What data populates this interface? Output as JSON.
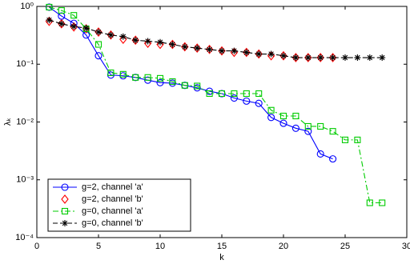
{
  "chart_data": {
    "type": "line",
    "xlabel": "k",
    "ylabel": "λₖ",
    "log_y": true,
    "xlim": [
      0,
      30
    ],
    "xticks": [
      0,
      5,
      10,
      15,
      20,
      25,
      30
    ],
    "ylim": [
      0.0001,
      1
    ],
    "yticks": [
      {
        "value": 0.0001,
        "label": "10⁻⁴"
      },
      {
        "value": 0.001,
        "label": "10⁻³"
      },
      {
        "value": 0.01,
        "label": "10⁻²"
      },
      {
        "value": 0.1,
        "label": "10⁻¹"
      },
      {
        "value": 1,
        "label": "10⁰"
      }
    ],
    "legend": "lower left",
    "series": [
      {
        "name": "g=2, channel 'a'",
        "color": "#0000ff",
        "marker": "circle",
        "linestyle": "solid",
        "x": [
          1,
          2,
          3,
          4,
          5,
          6,
          7,
          8,
          9,
          10,
          11,
          12,
          13,
          14,
          15,
          16,
          17,
          18,
          19,
          20,
          21,
          22,
          23,
          24
        ],
        "values": [
          0.97,
          0.68,
          0.51,
          0.32,
          0.14,
          0.065,
          0.063,
          0.059,
          0.053,
          0.048,
          0.047,
          0.043,
          0.039,
          0.034,
          0.031,
          0.026,
          0.023,
          0.021,
          0.012,
          0.0095,
          0.0078,
          0.0069,
          0.0028,
          0.0023
        ]
      },
      {
        "name": "g=2, channel 'b'",
        "color": "#ff0000",
        "marker": "diamond",
        "linestyle": "none",
        "x": [
          1,
          2,
          3,
          4,
          5,
          6,
          7,
          8,
          9,
          10,
          11,
          12,
          13,
          14,
          15,
          16,
          17,
          18,
          19,
          20,
          21,
          22,
          23,
          24
        ],
        "values": [
          0.55,
          0.5,
          0.44,
          0.41,
          0.36,
          0.32,
          0.27,
          0.26,
          0.23,
          0.22,
          0.22,
          0.2,
          0.19,
          0.18,
          0.17,
          0.16,
          0.16,
          0.15,
          0.14,
          0.14,
          0.13,
          0.13,
          0.13,
          0.13
        ]
      },
      {
        "name": "g=0, channel 'a'",
        "color": "#00cc00",
        "marker": "square",
        "linestyle": "dashdot",
        "x": [
          1,
          2,
          3,
          4,
          5,
          6,
          7,
          8,
          9,
          10,
          11,
          12,
          13,
          14,
          15,
          16,
          17,
          18,
          19,
          20,
          21,
          22,
          23,
          24,
          25,
          26,
          27,
          28
        ],
        "values": [
          0.97,
          0.85,
          0.7,
          0.41,
          0.22,
          0.071,
          0.067,
          0.059,
          0.059,
          0.057,
          0.05,
          0.043,
          0.042,
          0.031,
          0.031,
          0.031,
          0.031,
          0.031,
          0.016,
          0.0127,
          0.0127,
          0.0084,
          0.0084,
          0.0069,
          0.0049,
          0.0049,
          0.0004,
          0.0004
        ]
      },
      {
        "name": "g=0, channel 'b'",
        "color": "#000000",
        "marker": "star",
        "linestyle": "dashed",
        "x": [
          1,
          2,
          3,
          4,
          5,
          6,
          7,
          8,
          9,
          10,
          11,
          12,
          13,
          14,
          15,
          16,
          17,
          18,
          19,
          20,
          21,
          22,
          23,
          24,
          25,
          26,
          27,
          28
        ],
        "values": [
          0.58,
          0.5,
          0.45,
          0.42,
          0.36,
          0.32,
          0.3,
          0.26,
          0.25,
          0.24,
          0.22,
          0.2,
          0.19,
          0.18,
          0.17,
          0.17,
          0.16,
          0.15,
          0.15,
          0.14,
          0.13,
          0.13,
          0.13,
          0.13,
          0.13,
          0.13,
          0.13,
          0.13
        ]
      }
    ]
  }
}
